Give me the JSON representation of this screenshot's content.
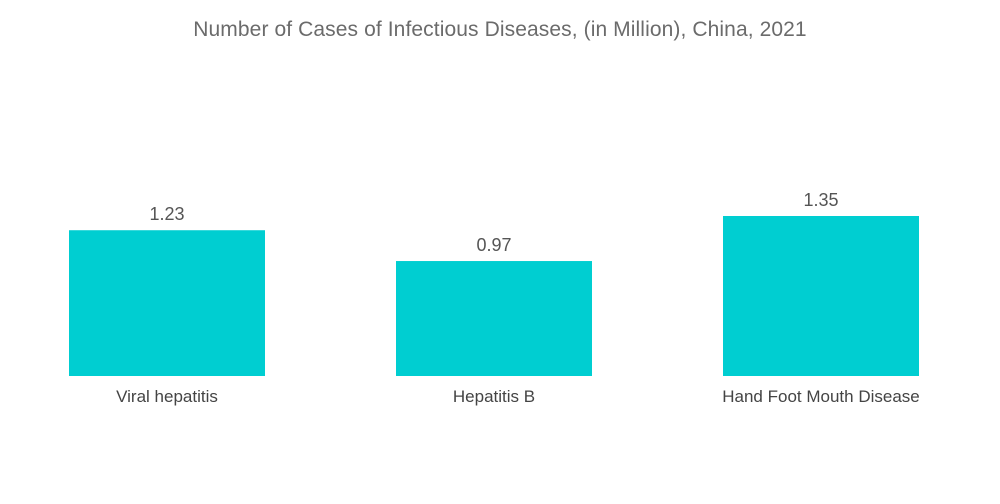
{
  "chart_data": {
    "type": "bar",
    "title": "Number of Cases of Infectious Diseases, (in Million), China, 2021",
    "categories": [
      "Viral hepatitis",
      "Hepatitis B",
      "Hand Foot Mouth Disease"
    ],
    "values": [
      1.23,
      0.97,
      1.35
    ],
    "value_labels": [
      "1.23",
      "0.97",
      "1.35"
    ],
    "xlabel": "",
    "ylabel": "",
    "ylim": [
      0,
      1.35
    ],
    "grid": false,
    "legend": "none",
    "bar_color": "#00CED1"
  }
}
